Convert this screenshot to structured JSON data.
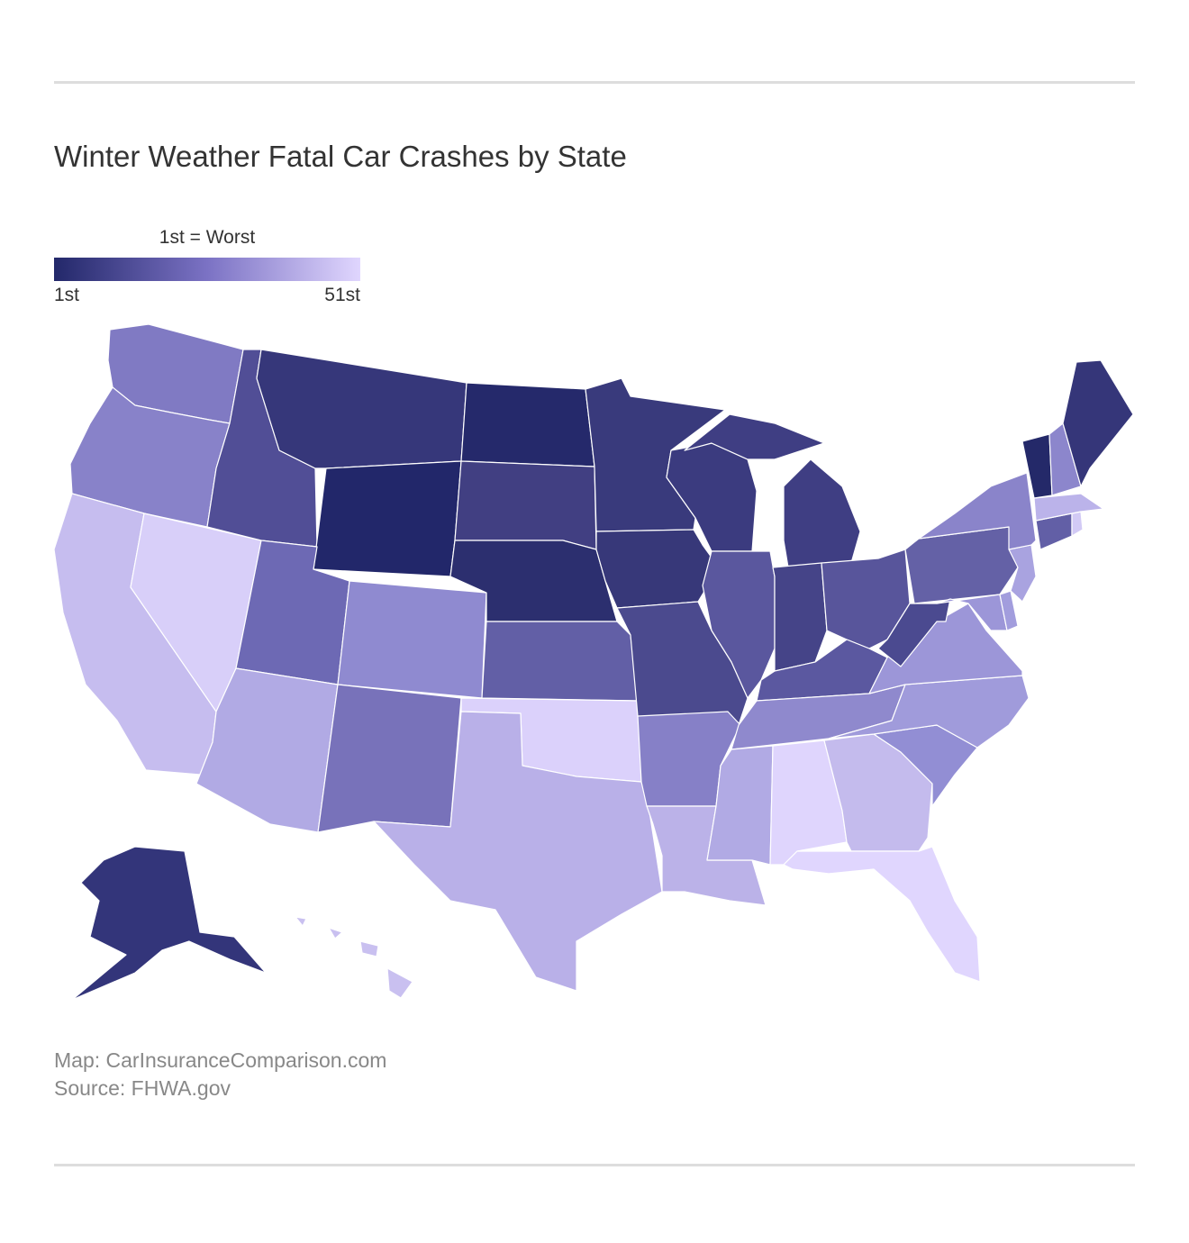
{
  "title": "Winter Weather Fatal Car Crashes by State",
  "legend": {
    "title": "1st = Worst",
    "min_label": "1st",
    "max_label": "51st",
    "color_dark": "#23286a",
    "color_mid": "#7b72c4",
    "color_light": "#e0d6fe"
  },
  "credits": {
    "map": "Map: CarInsuranceComparison.com",
    "source": "Source: FHWA.gov"
  },
  "map_data": {
    "type": "choropleth",
    "region": "United States",
    "ranking_note": "1st = Worst",
    "shade_scale": "dark = worst, light = best",
    "states": {
      "WY": "#22276a",
      "ND": "#25296b",
      "VT": "#242969",
      "NE": "#2c2f6f",
      "MT": "#36377a",
      "AK": "#33357a",
      "ME": "#353679",
      "MN": "#393a7c",
      "IA": "#373879",
      "WI": "#3b3b7f",
      "MI": "#3f3e83",
      "SD": "#413f82",
      "ID": "#514e96",
      "MO": "#4b4a8e",
      "IN": "#454488",
      "OH": "#58559b",
      "WV": "#4b4a90",
      "IL": "#5a579e",
      "KY": "#5b58a0",
      "PA": "#6461a6",
      "KS": "#625fa6",
      "CT": "#625fa6",
      "UT": "#6d69b4",
      "NM": "#7872ba",
      "WA": "#807ac3",
      "OR": "#8882c9",
      "AR": "#8680c7",
      "TN": "#8f89cd",
      "NY": "#8a84ca",
      "NH": "#8c86cc",
      "CO": "#8f8ad0",
      "SC": "#928ed4",
      "VA": "#9c96d8",
      "NC": "#a09bdb",
      "MD": "#9c96d8",
      "DE": "#a29ddd",
      "NJ": "#a9a3e0",
      "AZ": "#b1aae4",
      "MS": "#b1aae4",
      "TX": "#b9b0e8",
      "LA": "#bbb2e8",
      "MA": "#bbb3ea",
      "GA": "#c4bbed",
      "CA": "#c6bdef",
      "HI": "#c9c0f0",
      "RI": "#d2caf5",
      "NV": "#d8cff9",
      "OK": "#dbd1fb",
      "AL": "#dfd5fd",
      "FL": "#e0d6fe",
      "DC": "#9c96d8"
    }
  }
}
